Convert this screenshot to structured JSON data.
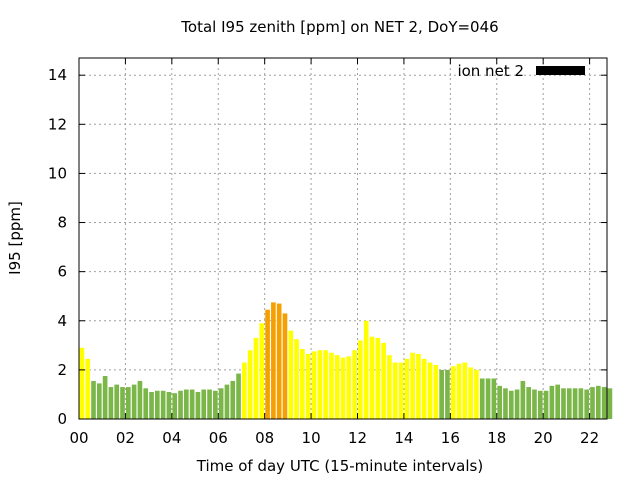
{
  "chart_data": {
    "type": "bar",
    "title": "Total I95 zenith [ppm] on NET 2, DoY=046",
    "xlabel": "Time of day UTC (15-minute intervals)",
    "ylabel": "I95 [ppm]",
    "xlim": [
      0,
      22.75
    ],
    "ylim": [
      0,
      14.7
    ],
    "x_ticks": [
      "00",
      "02",
      "04",
      "06",
      "08",
      "10",
      "12",
      "14",
      "16",
      "18",
      "20",
      "22"
    ],
    "y_ticks": [
      "0",
      "2",
      "4",
      "6",
      "8",
      "10",
      "12",
      "14"
    ],
    "grid": true,
    "legend_position": "top-right",
    "interval_hours": 0.25,
    "colors": {
      "green": "#7ab648",
      "yellow": "#ffff00",
      "orange": "#f5a000"
    },
    "series": [
      {
        "name": "ion net 2",
        "legend_color": "#000000",
        "x": [
          0,
          0.25,
          0.5,
          0.75,
          1,
          1.25,
          1.5,
          1.75,
          2,
          2.25,
          2.5,
          2.75,
          3,
          3.25,
          3.5,
          3.75,
          4,
          4.25,
          4.5,
          4.75,
          5,
          5.25,
          5.5,
          5.75,
          6,
          6.25,
          6.5,
          6.75,
          7,
          7.25,
          7.5,
          7.75,
          8,
          8.25,
          8.5,
          8.75,
          9,
          9.25,
          9.5,
          9.75,
          10,
          10.25,
          10.5,
          10.75,
          11,
          11.25,
          11.5,
          11.75,
          12,
          12.25,
          12.5,
          12.75,
          13,
          13.25,
          13.5,
          13.75,
          14,
          14.25,
          14.5,
          14.75,
          15,
          15.25,
          15.5,
          15.75,
          16,
          16.25,
          16.5,
          16.75,
          17,
          17.25,
          17.5,
          17.75,
          18,
          18.25,
          18.5,
          18.75,
          19,
          19.25,
          19.5,
          19.75,
          20,
          20.25,
          20.5,
          20.75,
          21,
          21.25,
          21.5,
          21.75,
          22,
          22.25,
          22.5,
          22.75
        ],
        "values": [
          2.9,
          2.45,
          1.55,
          1.45,
          1.75,
          1.3,
          1.4,
          1.3,
          1.3,
          1.4,
          1.55,
          1.25,
          1.1,
          1.15,
          1.15,
          1.1,
          1.05,
          1.15,
          1.2,
          1.2,
          1.1,
          1.2,
          1.2,
          1.15,
          1.25,
          1.4,
          1.55,
          1.85,
          2.3,
          2.8,
          3.3,
          3.9,
          4.45,
          4.75,
          4.7,
          4.3,
          3.6,
          3.25,
          2.85,
          2.65,
          2.75,
          2.8,
          2.8,
          2.7,
          2.6,
          2.5,
          2.55,
          2.8,
          3.2,
          4.0,
          3.35,
          3.3,
          3.1,
          2.6,
          2.3,
          2.3,
          2.45,
          2.7,
          2.65,
          2.45,
          2.3,
          2.2,
          2.0,
          2.0,
          2.15,
          2.25,
          2.3,
          2.1,
          2.0,
          1.65,
          1.65,
          1.65,
          1.35,
          1.25,
          1.15,
          1.2,
          1.55,
          1.3,
          1.2,
          1.15,
          1.15,
          1.35,
          1.4,
          1.25,
          1.25,
          1.25,
          1.25,
          1.2,
          1.3,
          1.35,
          1.3,
          1.25
        ],
        "bar_colors": [
          "yellow",
          "yellow",
          "green",
          "green",
          "green",
          "green",
          "green",
          "green",
          "green",
          "green",
          "green",
          "green",
          "green",
          "green",
          "green",
          "green",
          "green",
          "green",
          "green",
          "green",
          "green",
          "green",
          "green",
          "green",
          "green",
          "green",
          "green",
          "green",
          "yellow",
          "yellow",
          "yellow",
          "yellow",
          "orange",
          "orange",
          "orange",
          "orange",
          "yellow",
          "yellow",
          "yellow",
          "yellow",
          "yellow",
          "yellow",
          "yellow",
          "yellow",
          "yellow",
          "yellow",
          "yellow",
          "yellow",
          "yellow",
          "yellow",
          "yellow",
          "yellow",
          "yellow",
          "yellow",
          "yellow",
          "yellow",
          "yellow",
          "yellow",
          "yellow",
          "yellow",
          "yellow",
          "yellow",
          "green",
          "green",
          "yellow",
          "yellow",
          "yellow",
          "yellow",
          "yellow",
          "green",
          "green",
          "green",
          "green",
          "green",
          "green",
          "green",
          "green",
          "green",
          "green",
          "green",
          "green",
          "green",
          "green",
          "green",
          "green",
          "green",
          "green",
          "green",
          "green",
          "green",
          "green",
          "green"
        ]
      }
    ]
  }
}
